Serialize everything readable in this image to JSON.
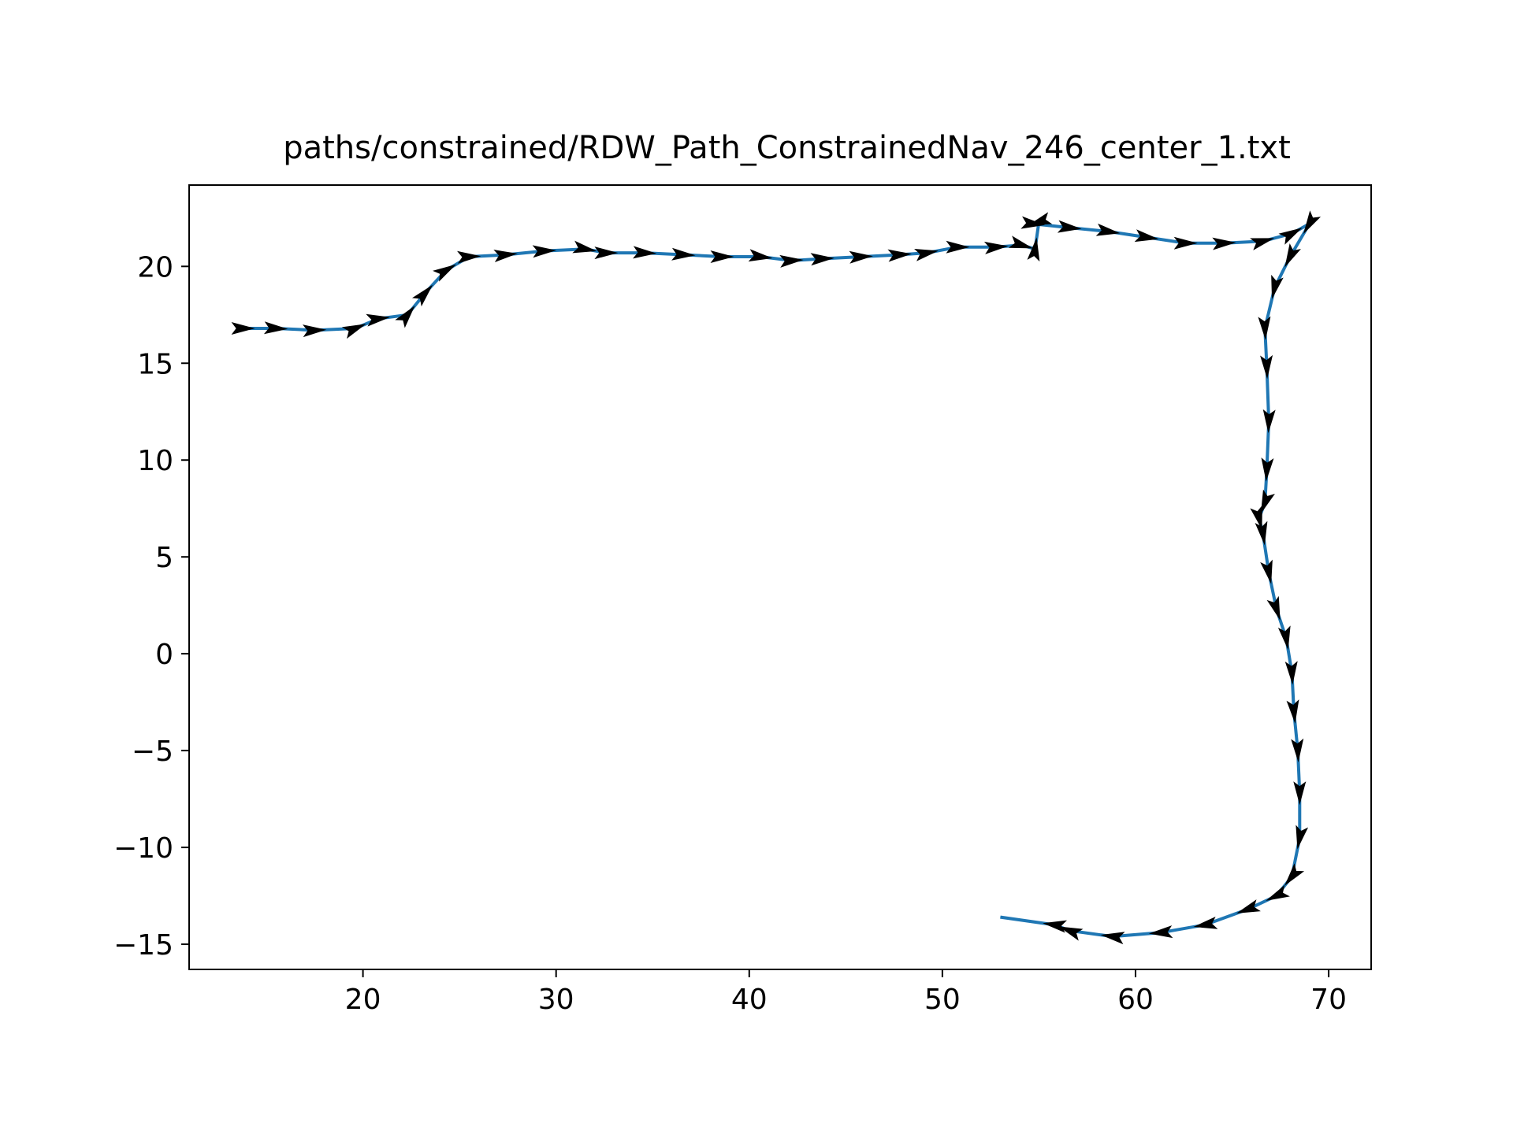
{
  "chart_data": {
    "type": "line",
    "title": "paths/constrained/RDW_Path_ConstrainedNav_246_center_1.txt",
    "xlabel": "",
    "ylabel": "",
    "xlim": [
      11,
      72.2
    ],
    "ylim": [
      -16.3,
      24.2
    ],
    "xticks": [
      20,
      30,
      40,
      50,
      60,
      70
    ],
    "yticks": [
      -15,
      -10,
      -5,
      0,
      5,
      10,
      15,
      20
    ],
    "xtick_labels": [
      "20",
      "30",
      "40",
      "50",
      "60",
      "70"
    ],
    "ytick_labels": [
      "−15",
      "−10",
      "−5",
      "0",
      "5",
      "10",
      "15",
      "20"
    ],
    "grid": false,
    "legend": "none",
    "series": [
      {
        "color": "#1f77b4",
        "marker_color": "#000000",
        "marker": "arrow",
        "x": [
          13.8,
          15.5,
          17.5,
          19.6,
          20.8,
          22.3,
          23.2,
          24.3,
          25.5,
          27.4,
          29.4,
          31.5,
          32.6,
          34.6,
          36.6,
          38.6,
          40.6,
          42.2,
          43.8,
          45.8,
          47.8,
          49.2,
          50.8,
          52.8,
          54.1,
          54.8,
          55.0,
          54.7,
          56.6,
          58.6,
          60.6,
          62.6,
          64.6,
          66.6,
          68.1,
          69.0,
          68.0,
          67.2,
          66.7,
          66.8,
          66.9,
          66.8,
          66.7,
          66.4,
          66.6,
          66.9,
          67.3,
          67.8,
          68.1,
          68.2,
          68.4,
          68.5,
          68.5,
          68.1,
          67.3,
          65.8,
          63.6,
          61.3,
          58.8,
          56.6,
          55.8,
          53.0
        ],
        "y": [
          16.8,
          16.8,
          16.7,
          16.8,
          17.3,
          17.5,
          18.6,
          19.8,
          20.5,
          20.6,
          20.8,
          20.9,
          20.7,
          20.7,
          20.6,
          20.5,
          20.5,
          20.3,
          20.4,
          20.5,
          20.6,
          20.7,
          21.0,
          21.0,
          21.1,
          20.9,
          22.3,
          22.2,
          22.0,
          21.8,
          21.5,
          21.2,
          21.2,
          21.3,
          21.7,
          22.2,
          20.5,
          18.9,
          16.8,
          14.8,
          12.0,
          9.5,
          7.8,
          7.0,
          6.2,
          4.2,
          2.3,
          0.8,
          -1.0,
          -3.0,
          -5.0,
          -7.2,
          -9.5,
          -11.5,
          -12.5,
          -13.2,
          -14.0,
          -14.4,
          -14.6,
          -14.3,
          -14.0,
          -13.6
        ]
      }
    ]
  }
}
